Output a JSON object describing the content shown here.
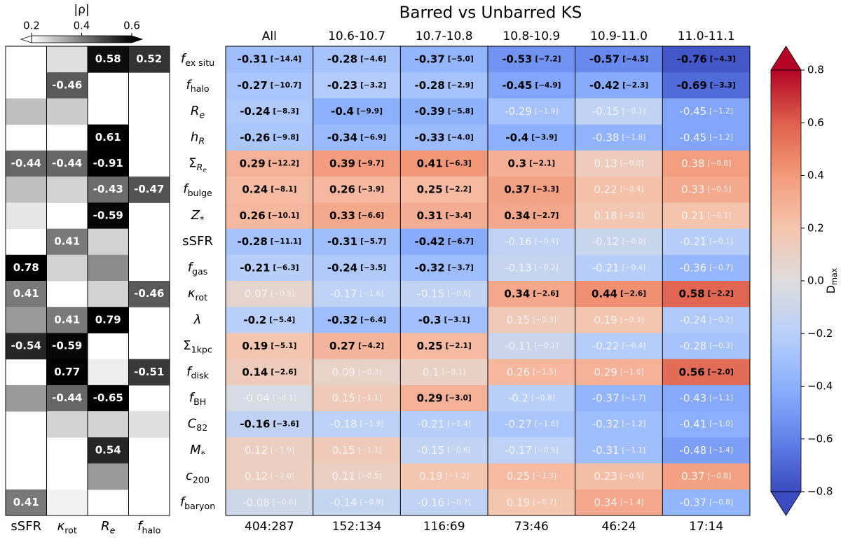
{
  "title": "Barred vs Unbarred KS",
  "row_labels": [
    {
      "text": "f",
      "italic": true,
      "sub": "ex situ"
    },
    {
      "text": "f",
      "italic": true,
      "sub": "halo"
    },
    {
      "text": "R",
      "italic": true,
      "sub": "e",
      "sub_italic": true
    },
    {
      "text": "h",
      "italic": true,
      "sub": "R",
      "sub_italic": true
    },
    {
      "text": "Σ",
      "sub": "R",
      "sub_italic": true,
      "subsub": "e"
    },
    {
      "text": "f",
      "italic": true,
      "sub": "bulge"
    },
    {
      "text": "Z",
      "italic": true,
      "sub": "*"
    },
    {
      "text": "sSFR"
    },
    {
      "text": "f",
      "italic": true,
      "sub": "gas"
    },
    {
      "text": "κ",
      "italic": true,
      "sub": "rot"
    },
    {
      "text": "λ",
      "italic": true
    },
    {
      "text": "Σ",
      "sub": "1kpc"
    },
    {
      "text": "f",
      "italic": true,
      "sub": "disk"
    },
    {
      "text": "f",
      "italic": true,
      "sub": "BH"
    },
    {
      "text": "C",
      "italic": true,
      "sub": "82"
    },
    {
      "text": "M",
      "italic": true,
      "sub": "*"
    },
    {
      "text": "c",
      "italic": true,
      "sub": "200"
    },
    {
      "text": "f",
      "italic": true,
      "sub": "baryon"
    }
  ],
  "chart_data": [
    {
      "type": "heatmap",
      "cmap": "Greys",
      "columns": [
        {
          "text": "sSFR"
        },
        {
          "text": "κ",
          "italic": true,
          "sub": "rot"
        },
        {
          "text": "R",
          "italic": true,
          "sub": "e",
          "sub_italic": true
        },
        {
          "text": "f",
          "italic": true,
          "sub": "halo"
        }
      ],
      "values": [
        [
          null,
          0.25,
          0.58,
          0.52
        ],
        [
          null,
          -0.46,
          null,
          null
        ],
        [
          0.3,
          0.28,
          null,
          null
        ],
        [
          null,
          null,
          0.61,
          null
        ],
        [
          -0.44,
          -0.44,
          -0.91,
          null
        ],
        [
          0.3,
          0.27,
          -0.43,
          -0.47
        ],
        [
          0.24,
          null,
          -0.59,
          null
        ],
        [
          null,
          0.41,
          0.27,
          null
        ],
        [
          0.78,
          0.27,
          0.38,
          null
        ],
        [
          0.41,
          null,
          0.27,
          -0.46
        ],
        [
          0.36,
          0.41,
          0.79,
          null
        ],
        [
          -0.54,
          -0.59,
          null,
          null
        ],
        [
          null,
          0.77,
          0.23,
          -0.51
        ],
        [
          0.36,
          -0.44,
          -0.65,
          null
        ],
        [
          null,
          0.27,
          0.27,
          0.25
        ],
        [
          null,
          null,
          0.54,
          null
        ],
        [
          null,
          null,
          0.36,
          null
        ],
        [
          0.41,
          0.22,
          null,
          null
        ]
      ],
      "labeled": [
        [
          false,
          false,
          true,
          true
        ],
        [
          false,
          true,
          false,
          false
        ],
        [
          false,
          false,
          false,
          false
        ],
        [
          false,
          false,
          true,
          false
        ],
        [
          true,
          true,
          true,
          false
        ],
        [
          false,
          false,
          true,
          true
        ],
        [
          false,
          false,
          true,
          false
        ],
        [
          false,
          true,
          false,
          false
        ],
        [
          true,
          false,
          false,
          false
        ],
        [
          true,
          false,
          false,
          true
        ],
        [
          false,
          true,
          true,
          false
        ],
        [
          true,
          true,
          false,
          false
        ],
        [
          false,
          true,
          false,
          true
        ],
        [
          false,
          true,
          true,
          false
        ],
        [
          false,
          false,
          false,
          false
        ],
        [
          false,
          false,
          true,
          false
        ],
        [
          false,
          false,
          false,
          false
        ],
        [
          true,
          false,
          false,
          false
        ]
      ],
      "colorbar": {
        "label": "|ρ|",
        "lim": [
          0.2,
          0.6
        ],
        "ticks": [
          0.2,
          0.4,
          0.6
        ],
        "orientation": "horizontal",
        "extend": "both"
      }
    },
    {
      "type": "heatmap",
      "cmap": "coolwarm",
      "columns": [
        "All",
        "10.6-10.7",
        "10.7-10.8",
        "10.8-10.9",
        "10.9-11.0",
        "11.0-11.1"
      ],
      "footer": [
        "404:287",
        "152:134",
        "116:69",
        "73:46",
        "46:24",
        "17:14"
      ],
      "values": [
        [
          -0.31,
          -0.28,
          -0.37,
          -0.53,
          -0.57,
          -0.76
        ],
        [
          -0.27,
          -0.23,
          -0.28,
          -0.45,
          -0.42,
          -0.69
        ],
        [
          -0.24,
          -0.4,
          -0.39,
          -0.29,
          -0.15,
          -0.45
        ],
        [
          -0.26,
          -0.34,
          -0.33,
          -0.4,
          -0.38,
          -0.45
        ],
        [
          0.29,
          0.39,
          0.41,
          0.3,
          0.13,
          0.38
        ],
        [
          0.24,
          0.26,
          0.25,
          0.37,
          0.22,
          0.33
        ],
        [
          0.26,
          0.33,
          0.31,
          0.34,
          0.18,
          0.21
        ],
        [
          -0.28,
          -0.31,
          -0.42,
          -0.16,
          -0.12,
          -0.21
        ],
        [
          -0.21,
          -0.24,
          -0.32,
          -0.13,
          -0.21,
          -0.36
        ],
        [
          0.07,
          -0.17,
          -0.15,
          0.34,
          0.44,
          0.58
        ],
        [
          -0.2,
          -0.32,
          -0.3,
          0.15,
          0.19,
          -0.24
        ],
        [
          0.19,
          0.27,
          0.25,
          -0.11,
          -0.22,
          -0.28
        ],
        [
          0.14,
          0.09,
          0.1,
          0.26,
          0.29,
          0.56
        ],
        [
          -0.04,
          0.15,
          0.29,
          -0.2,
          -0.37,
          -0.43
        ],
        [
          -0.16,
          -0.18,
          -0.21,
          -0.27,
          -0.32,
          -0.41
        ],
        [
          0.12,
          0.15,
          -0.15,
          -0.17,
          -0.31,
          -0.48
        ],
        [
          0.12,
          0.11,
          0.19,
          0.25,
          0.23,
          0.37
        ],
        [
          -0.08,
          -0.14,
          -0.16,
          0.19,
          0.34,
          -0.37
        ]
      ],
      "bracket_labels": [
        [
          "[−14.4]",
          "[−4.6]",
          "[−5.0]",
          "[−7.2]",
          "[−4.5]",
          "[−4.3]"
        ],
        [
          "[−10.7]",
          "[−3.2]",
          "[−2.9]",
          "[−4.9]",
          "[−2.3]",
          "[−3.3]"
        ],
        [
          "[−8.3]",
          "[−9.9]",
          "[−5.8]",
          "[−1.9]",
          "[−0.1]",
          "[−1.2]"
        ],
        [
          "[−9.8]",
          "[−6.9]",
          "[−4.0]",
          "[−3.9]",
          "[−1.8]",
          "[−1.2]"
        ],
        [
          "[−12.2]",
          "[−9.7]",
          "[−6.3]",
          "[−2.1]",
          "[−0.0]",
          "[−0.8]"
        ],
        [
          "[−8.1]",
          "[−3.9]",
          "[−2.2]",
          "[−3.3]",
          "[−0.4]",
          "[−0.5]"
        ],
        [
          "[−10.1]",
          "[−6.6]",
          "[−3.4]",
          "[−2.7]",
          "[−0.2]",
          "[−0.1]"
        ],
        [
          "[−11.1]",
          "[−5.7]",
          "[−6.7]",
          "[−0.4]",
          "[−0.0]",
          "[−0.1]"
        ],
        [
          "[−6.3]",
          "[−3.5]",
          "[−3.7]",
          "[−0.2]",
          "[−0.4]",
          "[−0.7]"
        ],
        [
          "[−0.5]",
          "[−1.6]",
          "[−0.6]",
          "[−2.6]",
          "[−2.6]",
          "[−2.2]"
        ],
        [
          "[−5.4]",
          "[−6.4]",
          "[−3.1]",
          "[−0.3]",
          "[−0.3]",
          "[−0.2]"
        ],
        [
          "[−5.1]",
          "[−4.2]",
          "[−2.1]",
          "[−0.1]",
          "[−0.4]",
          "[−0.3]"
        ],
        [
          "[−2.6]",
          "[−0.3]",
          "[−0.1]",
          "[−1.5]",
          "[−1.0]",
          "[−2.0]"
        ],
        [
          "[−0.1]",
          "[−1.1]",
          "[−3.0]",
          "[−0.8]",
          "[−1.7]",
          "[−1.1]"
        ],
        [
          "[−3.6]",
          "[−1.9]",
          "[−1.4]",
          "[−1.6]",
          "[−1.2]",
          "[−1.0]"
        ],
        [
          "[−1.9]",
          "[−1.1]",
          "[−0.6]",
          "[−0.5]",
          "[−1.1]",
          "[−1.4]"
        ],
        [
          "[−2.0]",
          "[−0.5]",
          "[−1.2]",
          "[−1.3]",
          "[−0.5]",
          "[−0.8]"
        ],
        [
          "[−0.6]",
          "[−0.9]",
          "[−0.7]",
          "[−0.7]",
          "[−1.4]",
          "[−0.8]"
        ]
      ],
      "bold": [
        [
          true,
          true,
          true,
          true,
          true,
          true
        ],
        [
          true,
          true,
          true,
          true,
          true,
          true
        ],
        [
          true,
          true,
          true,
          false,
          false,
          false
        ],
        [
          true,
          true,
          true,
          true,
          false,
          false
        ],
        [
          true,
          true,
          true,
          true,
          false,
          false
        ],
        [
          true,
          true,
          true,
          true,
          false,
          false
        ],
        [
          true,
          true,
          true,
          true,
          false,
          false
        ],
        [
          true,
          true,
          true,
          false,
          false,
          false
        ],
        [
          true,
          true,
          true,
          false,
          false,
          false
        ],
        [
          false,
          false,
          false,
          true,
          true,
          true
        ],
        [
          true,
          true,
          true,
          false,
          false,
          false
        ],
        [
          true,
          true,
          true,
          false,
          false,
          false
        ],
        [
          true,
          false,
          false,
          false,
          false,
          true
        ],
        [
          false,
          false,
          true,
          false,
          false,
          false
        ],
        [
          true,
          false,
          false,
          false,
          false,
          false
        ],
        [
          false,
          false,
          false,
          false,
          false,
          false
        ],
        [
          false,
          false,
          false,
          false,
          false,
          false
        ],
        [
          false,
          false,
          false,
          false,
          false,
          false
        ]
      ],
      "colorbar": {
        "label": {
          "text": "D",
          "sub": "max"
        },
        "lim": [
          -0.8,
          0.8
        ],
        "ticks": [
          {
            "value": -0.8,
            "label": "−0.8"
          },
          {
            "value": -0.6,
            "label": "−0.6"
          },
          {
            "value": -0.4,
            "label": "−0.4"
          },
          {
            "value": -0.2,
            "label": "−0.2"
          },
          {
            "value": 0,
            "label": "0.0"
          },
          0.2,
          0.4,
          0.6,
          0.8
        ],
        "orientation": "vertical",
        "extend": "both"
      }
    }
  ]
}
